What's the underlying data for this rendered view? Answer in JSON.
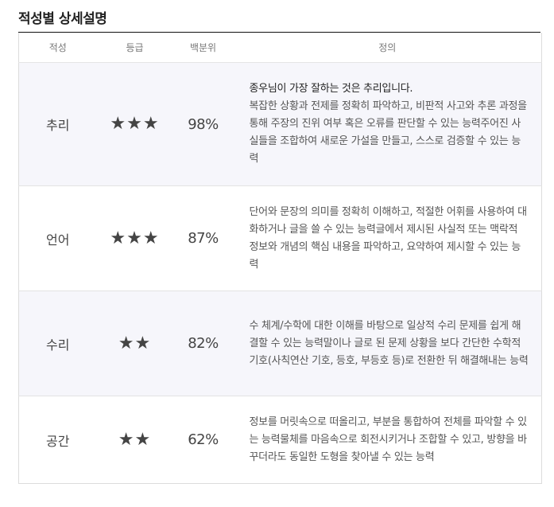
{
  "section": {
    "title": "적성별 상세설명"
  },
  "table": {
    "headers": {
      "aptitude": "적성",
      "grade": "등급",
      "percentile": "백분위",
      "definition": "정의"
    },
    "rows": [
      {
        "aptitude": "추리",
        "stars": "★★★",
        "star_count": 3,
        "percentile": "98%",
        "lead": "종우님이 가장 잘하는 것은 추리입니다.",
        "definition": "복잡한 상황과 전제를 정확히 파악하고, 비판적 사고와 추론 과정을 통해 주장의 진위 여부 혹은 오류를 판단할 수 있는 능력주어진 사실들을 조합하여 새로운 가설을 만들고, 스스로 검증할 수 있는 능력"
      },
      {
        "aptitude": "언어",
        "stars": "★★★",
        "star_count": 3,
        "percentile": "87%",
        "lead": "",
        "definition": "단어와 문장의 의미를 정확히 이해하고, 적절한 어휘를 사용하여 대화하거나 글을 쓸 수 있는 능력글에서 제시된 사실적 또는 맥락적 정보와 개념의 핵심 내용을 파악하고, 요약하여 제시할 수 있는 능력"
      },
      {
        "aptitude": "수리",
        "stars": "★★",
        "star_count": 2,
        "percentile": "82%",
        "lead": "",
        "definition": "수 체계/수학에 대한 이해를 바탕으로 일상적 수리 문제를 쉽게 해결할 수 있는 능력말이나 글로 된 문제 상황을 보다 간단한 수학적 기호(사칙연산 기호, 등호, 부등호 등)로 전환한 뒤 해결해내는 능력"
      },
      {
        "aptitude": "공간",
        "stars": "★★",
        "star_count": 2,
        "percentile": "62%",
        "lead": "",
        "definition": "정보를 머릿속으로 떠올리고, 부분을 통합하여 전체를 파악할 수 있는 능력물체를 마음속으로 회전시키거나 조합할 수 있고, 방향을 바꾸더라도 동일한 도형을 찾아낼 수 있는 능력"
      }
    ]
  },
  "colors": {
    "shaded_row": "#f6f6fb",
    "title_rule": "#111111",
    "border": "#dcdcdc"
  }
}
